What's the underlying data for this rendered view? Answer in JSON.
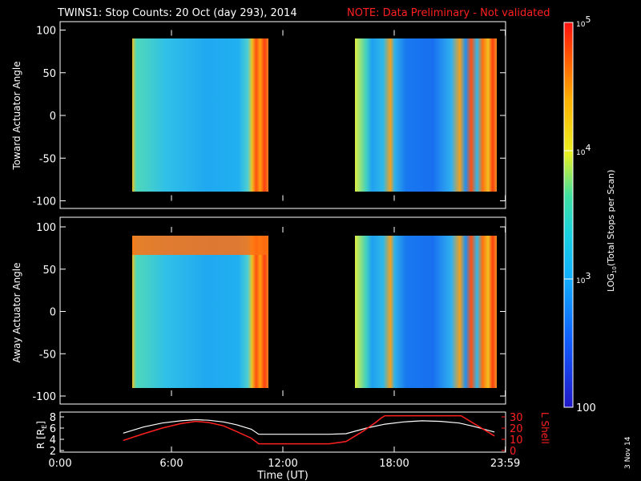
{
  "header": {
    "title": "TWINS1: Stop Counts: 20 Oct (day 293), 2014",
    "note": "NOTE: Data Preliminary - Not validated"
  },
  "stamp": "3 Nov 14",
  "colors": {
    "background": "#000000",
    "axis": "#ffffff",
    "note": "#ff2020",
    "lshell": "#ff2020",
    "radius": "#ffffff"
  },
  "chart_data": [
    {
      "type": "heatmap",
      "ylabel": "Toward Actuator Angle",
      "ylim": [
        -100,
        100
      ],
      "yticks": [
        "100",
        "50",
        "0",
        "-50",
        "-100"
      ],
      "xlim": [
        0,
        24
      ],
      "data_intervals_hours": [
        [
          3.4,
          10.7
        ],
        [
          15.4,
          23.4
        ]
      ]
    },
    {
      "type": "heatmap",
      "ylabel": "Away Actuator Angle",
      "ylim": [
        -100,
        100
      ],
      "yticks": [
        "100",
        "50",
        "0",
        "-50",
        "-100"
      ],
      "xlim": [
        0,
        24
      ],
      "data_intervals_hours": [
        [
          3.4,
          10.7
        ],
        [
          15.4,
          23.4
        ]
      ]
    },
    {
      "type": "line",
      "ylabel_left": "R [R",
      "ylabel_left_sub": "E",
      "ylabel_left_close": "]",
      "ylabel_right": "L Shell",
      "ylim_left": [
        2,
        8
      ],
      "yticks_left": [
        "8",
        "6",
        "4",
        "2"
      ],
      "ylim_right": [
        0,
        30
      ],
      "yticks_right": [
        "30",
        "20",
        "10",
        "0"
      ],
      "xlabel": "Time (UT)",
      "xticks": [
        "0:00",
        "6:00",
        "12:00",
        "18:00",
        "23:59"
      ],
      "series": [
        {
          "axis": "left",
          "x": [
            3.4,
            4.5,
            5.5,
            6.5,
            7.3,
            8.0,
            8.8,
            9.5,
            10.3,
            10.7,
            12.0,
            13.0,
            14.5,
            15.4,
            16.5,
            17.5,
            18.5,
            19.5,
            20.5,
            21.5,
            22.3,
            23.4
          ],
          "y": [
            5.1,
            6.2,
            6.9,
            7.3,
            7.5,
            7.4,
            7.1,
            6.6,
            5.8,
            4.9,
            4.9,
            4.9,
            4.9,
            5.0,
            6.0,
            6.7,
            7.1,
            7.3,
            7.2,
            6.9,
            6.3,
            5.3
          ]
        },
        {
          "axis": "right",
          "x": [
            3.4,
            4.5,
            5.5,
            6.5,
            7.3,
            8.0,
            8.8,
            9.5,
            10.3,
            10.7,
            12.0,
            13.0,
            14.5,
            15.4,
            16.3,
            17.0,
            17.3,
            17.5,
            21.6,
            22.2,
            22.8,
            23.4
          ],
          "y": [
            9,
            15,
            20,
            24,
            26,
            25,
            22,
            17,
            11,
            6,
            6,
            6,
            6,
            8,
            17,
            25,
            29,
            31,
            31,
            25,
            19,
            13
          ]
        }
      ]
    },
    {
      "type": "heatmap",
      "colorbar": true,
      "label_prefix": "LOG",
      "label_sub": "10",
      "label_suffix": "(Total Stops per Scan)",
      "range": [
        100,
        100000
      ],
      "ticks": [
        {
          "base": "10",
          "exp": "5",
          "value": 100000
        },
        {
          "base": "10",
          "exp": "4",
          "value": 10000
        },
        {
          "base": "10",
          "exp": "3",
          "value": 1000
        },
        {
          "base": "100",
          "exp": "",
          "value": 100
        }
      ]
    }
  ]
}
